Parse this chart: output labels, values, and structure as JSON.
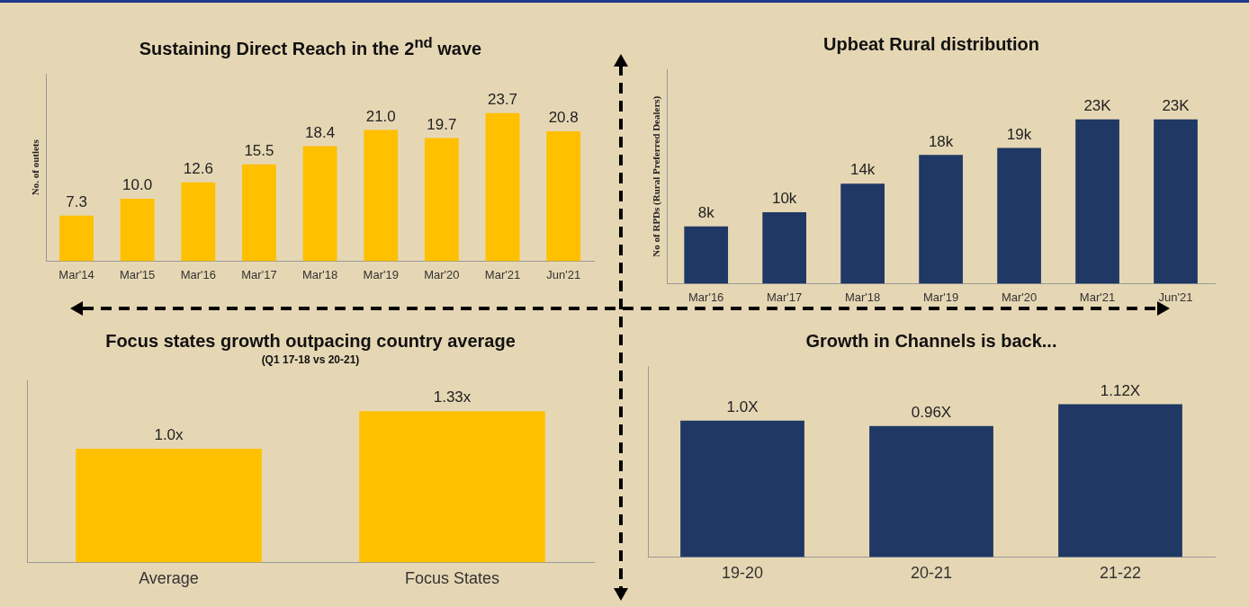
{
  "chart_data": [
    {
      "type": "bar",
      "title": "Sustaining Direct Reach in the 2$^{nd}$ wave",
      "ylabel": "No. of outlets",
      "categories": [
        "Mar'14",
        "Mar'15",
        "Mar'16",
        "Mar'17",
        "Mar'18",
        "Mar'19",
        "Mar'20",
        "Mar'21",
        "Jun'21"
      ],
      "values": [
        7.3,
        10.0,
        12.6,
        15.5,
        18.4,
        21.0,
        19.7,
        23.7,
        20.8
      ],
      "value_labels": [
        "7.3",
        "10.0",
        "12.6",
        "15.5",
        "18.4",
        "21.0",
        "19.7",
        "23.7",
        "20.8"
      ],
      "color": "#ffc000",
      "tick_labels": "x"
    },
    {
      "type": "bar",
      "title": "Upbeat Rural distribution",
      "ylabel": "No of RPDs (Rural Preferred Dealers)",
      "categories": [
        "Mar'16",
        "Mar'17",
        "Mar'18",
        "Mar'19",
        "Mar'20",
        "Mar'21",
        "Jun'21"
      ],
      "values": [
        8,
        10,
        14,
        18,
        19,
        23,
        23
      ],
      "value_labels": [
        "8k",
        "10k",
        "14k",
        "18k",
        "19k",
        "23K",
        "23K"
      ],
      "color": "#1f3864",
      "tick_labels": "x"
    },
    {
      "type": "bar",
      "title": "Focus states growth outpacing country average",
      "subtitle": "(Q1 17-18 vs 20-21)",
      "categories": [
        "Average",
        "Focus States"
      ],
      "values": [
        1.0,
        1.33
      ],
      "value_labels": [
        "1.0x",
        "1.33x"
      ],
      "color": "#ffc000",
      "tick_labels": "x"
    },
    {
      "type": "bar",
      "title": "Growth in Channels is back...",
      "categories": [
        "19-20",
        "20-21",
        "21-22"
      ],
      "values": [
        1.0,
        0.96,
        1.12
      ],
      "value_labels": [
        "1.0X",
        "0.96X",
        "1.12X"
      ],
      "color": "#1f3864",
      "tick_labels": "x"
    }
  ]
}
